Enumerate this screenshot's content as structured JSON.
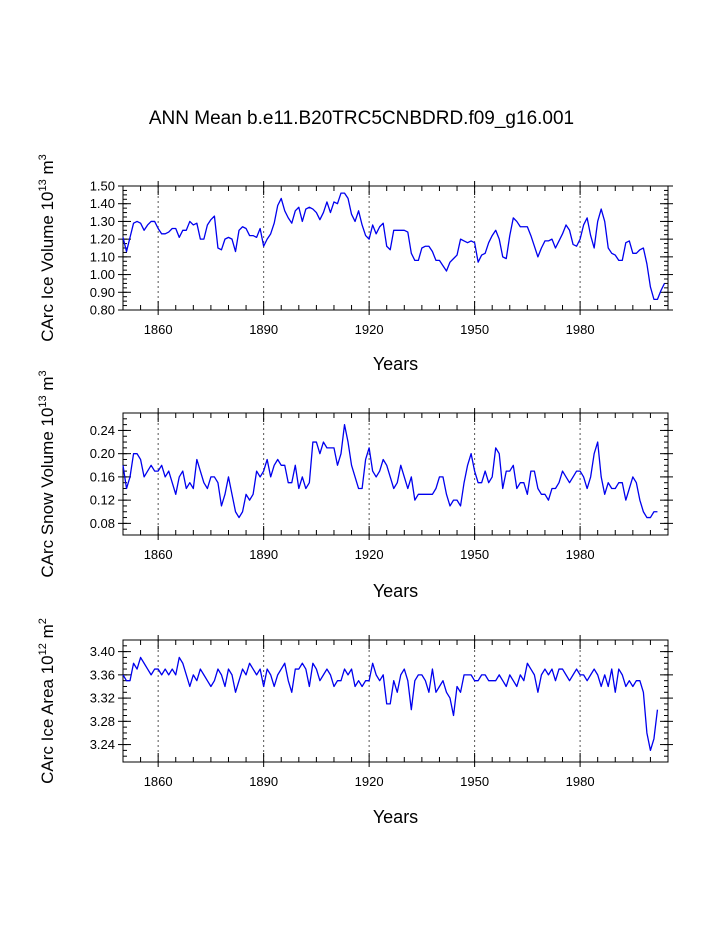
{
  "title": "ANN Mean b.e11.B20TRC5CNBDRD.f09_g16.001",
  "colors": {
    "series": "#0000ee",
    "axis": "#000000",
    "grid": "#555555"
  },
  "chart_data": [
    {
      "type": "line",
      "title": "ANN Mean b.e11.B20TRC5CNBDRD.f09_g16.001",
      "ylabel": {
        "text": "CArc Ice Volume 10",
        "exp": "13",
        "unit": " m",
        "unit_exp": "3"
      },
      "xlabel": "Years",
      "xlim": [
        1850,
        2005
      ],
      "ylim": [
        0.8,
        1.5
      ],
      "xticks": [
        1860,
        1890,
        1920,
        1950,
        1980
      ],
      "xtick_labels": [
        "1860",
        "1890",
        "1920",
        "1950",
        "1980"
      ],
      "yticks": [
        0.8,
        0.9,
        1.0,
        1.1,
        1.2,
        1.3,
        1.4,
        1.5
      ],
      "ytick_labels": [
        "0.80",
        "0.90",
        "1.00",
        "1.10",
        "1.20",
        "1.30",
        "1.40",
        "1.50"
      ],
      "grid": "vertical-dotted",
      "series": [
        {
          "name": "CArc Ice Volume",
          "x_start": 1850,
          "x_step": 1,
          "values": [
            1.21,
            1.13,
            1.21,
            1.29,
            1.3,
            1.29,
            1.25,
            1.28,
            1.3,
            1.3,
            1.26,
            1.23,
            1.23,
            1.24,
            1.26,
            1.26,
            1.21,
            1.25,
            1.25,
            1.3,
            1.28,
            1.29,
            1.2,
            1.2,
            1.28,
            1.31,
            1.33,
            1.15,
            1.14,
            1.2,
            1.21,
            1.2,
            1.13,
            1.25,
            1.27,
            1.26,
            1.22,
            1.22,
            1.21,
            1.26,
            1.16,
            1.2,
            1.23,
            1.29,
            1.39,
            1.43,
            1.36,
            1.32,
            1.29,
            1.36,
            1.38,
            1.3,
            1.37,
            1.38,
            1.37,
            1.35,
            1.31,
            1.35,
            1.41,
            1.35,
            1.41,
            1.4,
            1.46,
            1.46,
            1.43,
            1.34,
            1.3,
            1.36,
            1.28,
            1.22,
            1.2,
            1.28,
            1.23,
            1.27,
            1.29,
            1.16,
            1.14,
            1.25,
            1.25,
            1.25,
            1.25,
            1.24,
            1.12,
            1.08,
            1.08,
            1.15,
            1.16,
            1.16,
            1.13,
            1.08,
            1.08,
            1.05,
            1.02,
            1.07,
            1.09,
            1.11,
            1.2,
            1.19,
            1.18,
            1.19,
            1.18,
            1.07,
            1.11,
            1.12,
            1.18,
            1.22,
            1.25,
            1.2,
            1.1,
            1.09,
            1.22,
            1.32,
            1.3,
            1.27,
            1.27,
            1.27,
            1.22,
            1.16,
            1.1,
            1.15,
            1.19,
            1.19,
            1.2,
            1.15,
            1.19,
            1.23,
            1.28,
            1.25,
            1.17,
            1.16,
            1.2,
            1.28,
            1.32,
            1.22,
            1.15,
            1.3,
            1.37,
            1.3,
            1.15,
            1.12,
            1.11,
            1.08,
            1.08,
            1.18,
            1.19,
            1.12,
            1.12,
            1.14,
            1.15,
            1.06,
            0.93,
            0.86,
            0.86,
            0.91,
            0.95
          ]
        }
      ]
    },
    {
      "type": "line",
      "ylabel": {
        "text": "CArc Snow Volume 10",
        "exp": "13",
        "unit": " m",
        "unit_exp": "3"
      },
      "xlabel": "Years",
      "xlim": [
        1850,
        2005
      ],
      "ylim": [
        0.06,
        0.27
      ],
      "xticks": [
        1860,
        1890,
        1920,
        1950,
        1980
      ],
      "xtick_labels": [
        "1860",
        "1890",
        "1920",
        "1950",
        "1980"
      ],
      "yticks": [
        0.08,
        0.12,
        0.16,
        0.2,
        0.24
      ],
      "ytick_labels": [
        "0.08",
        "0.12",
        "0.16",
        "0.20",
        "0.24"
      ],
      "grid": "vertical-dotted",
      "series": [
        {
          "name": "CArc Snow Volume",
          "x_start": 1850,
          "x_step": 1,
          "values": [
            0.18,
            0.14,
            0.16,
            0.2,
            0.2,
            0.19,
            0.16,
            0.17,
            0.18,
            0.17,
            0.17,
            0.18,
            0.16,
            0.17,
            0.15,
            0.13,
            0.16,
            0.17,
            0.14,
            0.15,
            0.14,
            0.19,
            0.17,
            0.15,
            0.14,
            0.16,
            0.16,
            0.15,
            0.11,
            0.13,
            0.16,
            0.13,
            0.1,
            0.09,
            0.1,
            0.13,
            0.12,
            0.13,
            0.17,
            0.16,
            0.17,
            0.19,
            0.16,
            0.18,
            0.19,
            0.18,
            0.18,
            0.15,
            0.15,
            0.18,
            0.14,
            0.16,
            0.14,
            0.15,
            0.22,
            0.22,
            0.2,
            0.22,
            0.21,
            0.21,
            0.21,
            0.18,
            0.2,
            0.25,
            0.22,
            0.18,
            0.16,
            0.14,
            0.14,
            0.19,
            0.21,
            0.17,
            0.16,
            0.17,
            0.19,
            0.18,
            0.16,
            0.14,
            0.15,
            0.18,
            0.16,
            0.14,
            0.16,
            0.12,
            0.13,
            0.13,
            0.13,
            0.13,
            0.13,
            0.14,
            0.16,
            0.16,
            0.13,
            0.11,
            0.12,
            0.12,
            0.11,
            0.15,
            0.18,
            0.2,
            0.17,
            0.15,
            0.15,
            0.17,
            0.15,
            0.16,
            0.21,
            0.2,
            0.14,
            0.17,
            0.17,
            0.18,
            0.14,
            0.15,
            0.15,
            0.13,
            0.17,
            0.17,
            0.14,
            0.13,
            0.13,
            0.12,
            0.14,
            0.14,
            0.15,
            0.17,
            0.16,
            0.15,
            0.16,
            0.17,
            0.17,
            0.16,
            0.14,
            0.16,
            0.2,
            0.22,
            0.16,
            0.13,
            0.15,
            0.14,
            0.14,
            0.15,
            0.15,
            0.12,
            0.14,
            0.16,
            0.15,
            0.12,
            0.1,
            0.09,
            0.09,
            0.1,
            0.1
          ]
        }
      ]
    },
    {
      "type": "line",
      "ylabel": {
        "text": "CArc Ice Area 10",
        "exp": "12",
        "unit": " m",
        "unit_exp": "2"
      },
      "xlabel": "Years",
      "xlim": [
        1850,
        2005
      ],
      "ylim": [
        3.21,
        3.42
      ],
      "xticks": [
        1860,
        1890,
        1920,
        1950,
        1980
      ],
      "xtick_labels": [
        "1860",
        "1890",
        "1920",
        "1950",
        "1980"
      ],
      "yticks": [
        3.24,
        3.28,
        3.32,
        3.36,
        3.4
      ],
      "ytick_labels": [
        "3.24",
        "3.28",
        "3.32",
        "3.36",
        "3.40"
      ],
      "grid": "vertical-dotted",
      "series": [
        {
          "name": "CArc Ice Area",
          "x_start": 1850,
          "x_step": 1,
          "values": [
            3.36,
            3.35,
            3.35,
            3.38,
            3.37,
            3.39,
            3.38,
            3.37,
            3.36,
            3.37,
            3.37,
            3.36,
            3.37,
            3.36,
            3.37,
            3.36,
            3.39,
            3.38,
            3.36,
            3.34,
            3.36,
            3.35,
            3.37,
            3.36,
            3.35,
            3.34,
            3.35,
            3.37,
            3.36,
            3.34,
            3.37,
            3.36,
            3.33,
            3.35,
            3.37,
            3.36,
            3.38,
            3.37,
            3.36,
            3.37,
            3.34,
            3.37,
            3.36,
            3.34,
            3.36,
            3.37,
            3.38,
            3.35,
            3.33,
            3.37,
            3.37,
            3.38,
            3.37,
            3.34,
            3.38,
            3.37,
            3.35,
            3.36,
            3.37,
            3.36,
            3.34,
            3.35,
            3.35,
            3.37,
            3.36,
            3.37,
            3.34,
            3.35,
            3.34,
            3.35,
            3.35,
            3.38,
            3.36,
            3.35,
            3.36,
            3.31,
            3.31,
            3.35,
            3.33,
            3.36,
            3.37,
            3.35,
            3.3,
            3.35,
            3.36,
            3.36,
            3.35,
            3.33,
            3.37,
            3.33,
            3.34,
            3.35,
            3.33,
            3.32,
            3.29,
            3.34,
            3.33,
            3.36,
            3.36,
            3.36,
            3.35,
            3.35,
            3.36,
            3.36,
            3.35,
            3.35,
            3.35,
            3.36,
            3.35,
            3.34,
            3.36,
            3.35,
            3.34,
            3.36,
            3.35,
            3.38,
            3.37,
            3.36,
            3.33,
            3.36,
            3.37,
            3.36,
            3.37,
            3.35,
            3.37,
            3.37,
            3.36,
            3.35,
            3.36,
            3.37,
            3.36,
            3.36,
            3.35,
            3.36,
            3.37,
            3.36,
            3.34,
            3.36,
            3.34,
            3.37,
            3.33,
            3.37,
            3.36,
            3.34,
            3.35,
            3.34,
            3.35,
            3.35,
            3.33,
            3.26,
            3.23,
            3.25,
            3.3
          ]
        }
      ]
    }
  ]
}
